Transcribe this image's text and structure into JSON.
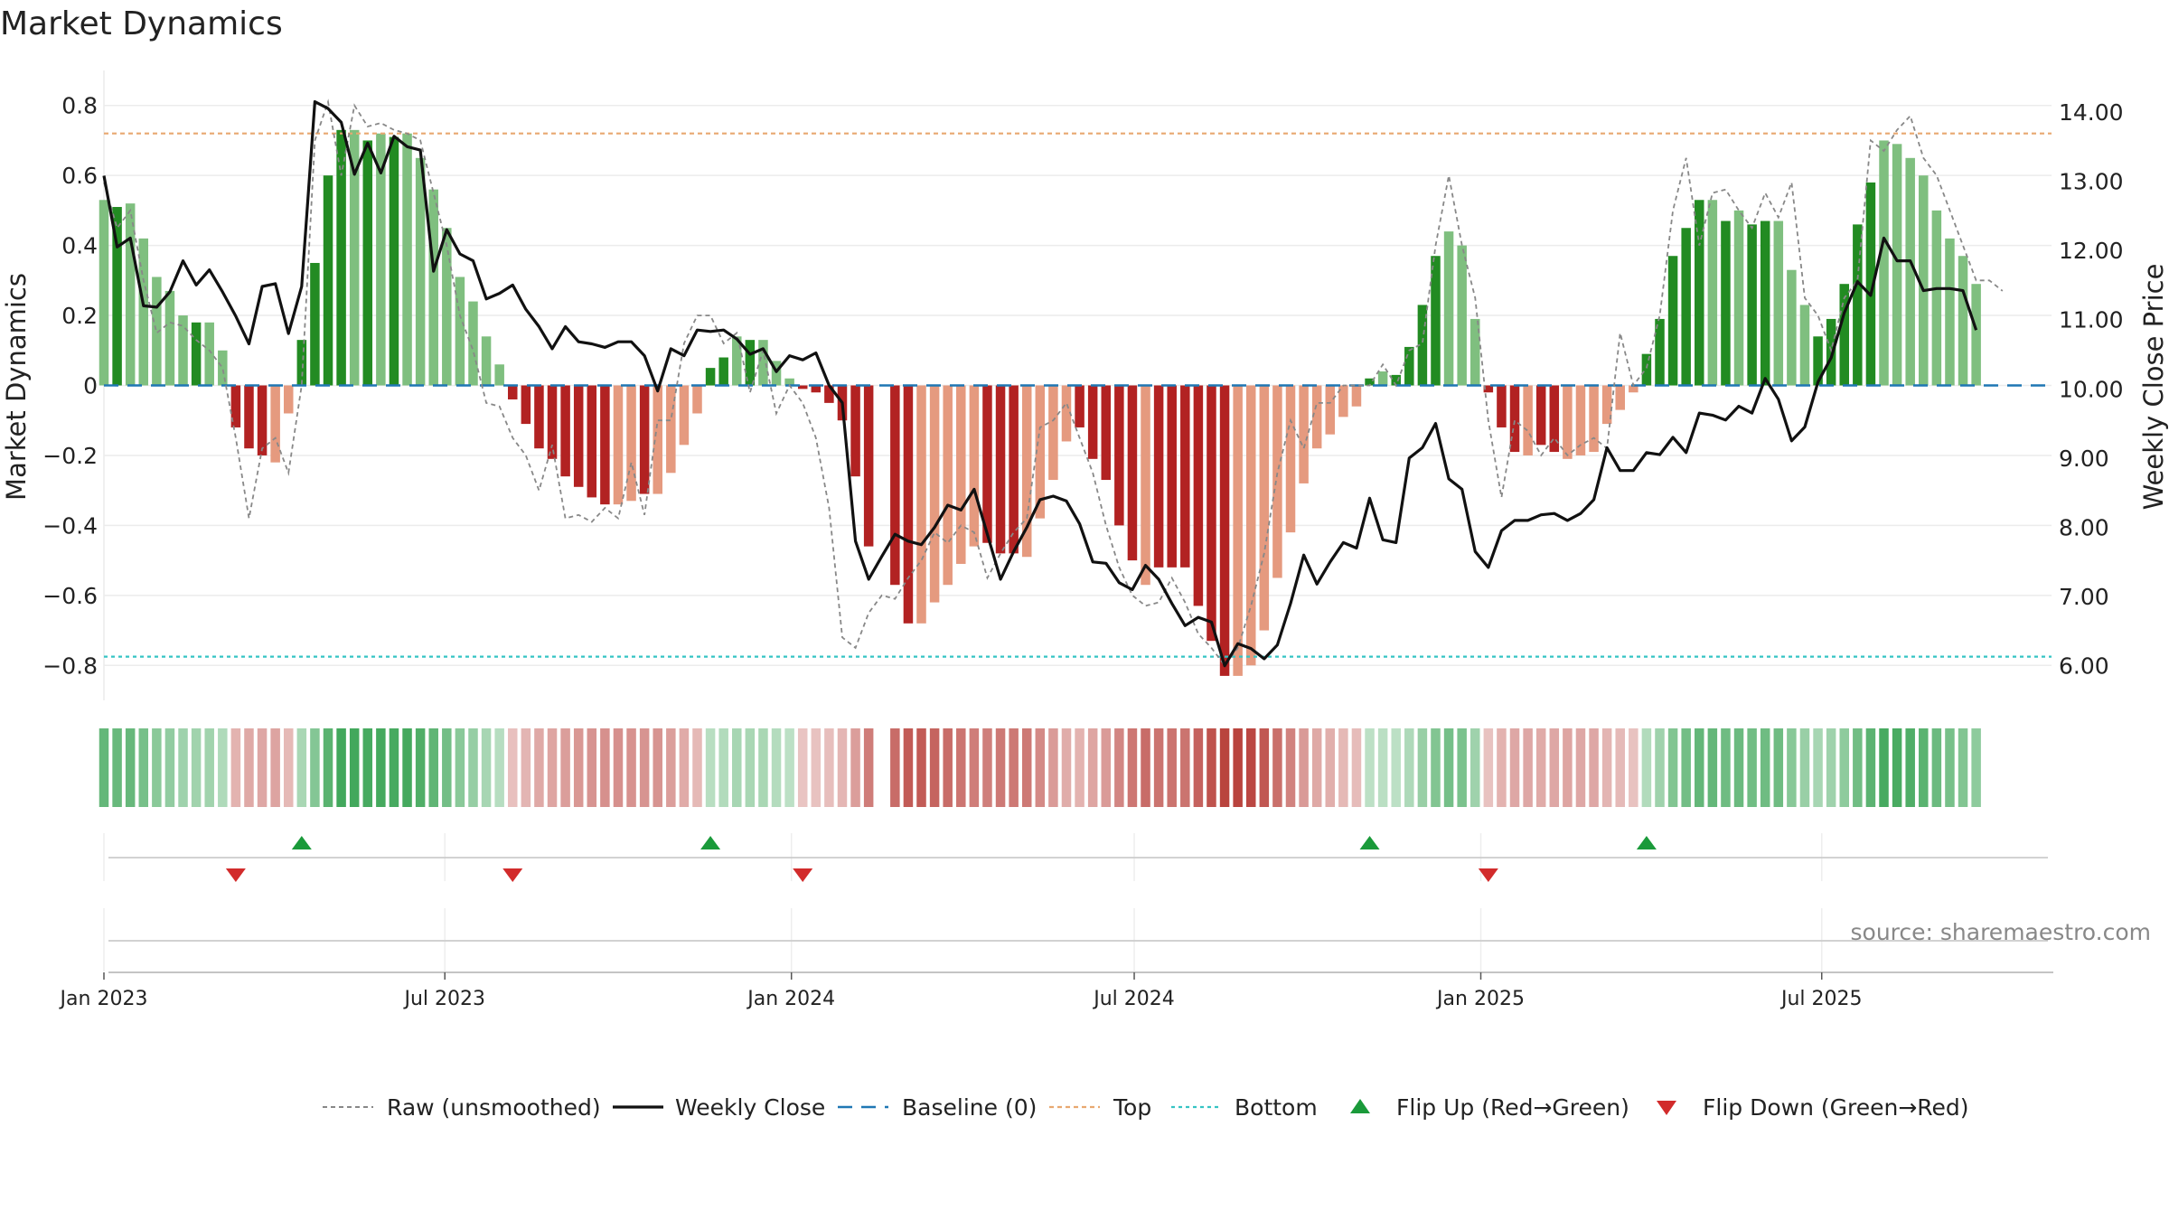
{
  "chart_data": {
    "type": "bar",
    "title": "Market Dynamics",
    "ylabel": "Market Dynamics",
    "y2label": "Weekly Close Price",
    "ylim": [
      -0.9,
      0.9
    ],
    "y2lim": [
      5.5,
      14.6
    ],
    "yticks": [
      {
        "v": 0.8,
        "label": "0.8"
      },
      {
        "v": 0.6,
        "label": "0.6"
      },
      {
        "v": 0.4,
        "label": "0.4"
      },
      {
        "v": 0.2,
        "label": "0.2"
      },
      {
        "v": 0,
        "label": "0"
      },
      {
        "v": -0.2,
        "label": "−0.2"
      },
      {
        "v": -0.4,
        "label": "−0.4"
      },
      {
        "v": -0.6,
        "label": "−0.6"
      },
      {
        "v": -0.8,
        "label": "−0.8"
      }
    ],
    "y2ticks": [
      {
        "v": 14,
        "label": "14.00"
      },
      {
        "v": 13,
        "label": "13.00"
      },
      {
        "v": 12,
        "label": "12.00"
      },
      {
        "v": 11,
        "label": "11.00"
      },
      {
        "v": 10,
        "label": "10.00"
      },
      {
        "v": 9,
        "label": "9.00"
      },
      {
        "v": 8,
        "label": "8.00"
      },
      {
        "v": 7,
        "label": "7.00"
      },
      {
        "v": 6,
        "label": "6.00"
      }
    ],
    "x_start": "2023-01-01",
    "x_end": "2025-10-31",
    "xticks": [
      {
        "date": "2023-01-01",
        "label": "Jan 2023"
      },
      {
        "date": "2023-07-01",
        "label": "Jul 2023"
      },
      {
        "date": "2024-01-01",
        "label": "Jan 2024"
      },
      {
        "date": "2024-07-01",
        "label": "Jul 2024"
      },
      {
        "date": "2025-01-01",
        "label": "Jan 2025"
      },
      {
        "date": "2025-07-01",
        "label": "Jul 2025"
      }
    ],
    "top": 0.72,
    "bottom": -0.775,
    "baseline": 0,
    "segments": [
      {
        "start": "2023-01-01",
        "values": [
          0.53,
          0.51,
          0.52,
          0.42,
          0.31,
          0.27,
          0.2,
          0.18,
          0.18,
          0.1
        ]
      },
      {
        "start": "2023-03-12",
        "values": [
          -0.12,
          -0.18,
          -0.2,
          -0.22,
          -0.08
        ]
      },
      {
        "start": "2023-04-16",
        "values": [
          0.13,
          0.35,
          0.6,
          0.73,
          0.73,
          0.7,
          0.72,
          0.71,
          0.72,
          0.65,
          0.56,
          0.45,
          0.31,
          0.24,
          0.14,
          0.06
        ]
      },
      {
        "start": "2023-08-06",
        "values": [
          -0.04,
          -0.11,
          -0.18,
          -0.21,
          -0.26,
          -0.29,
          -0.32,
          -0.34,
          -0.34,
          -0.33,
          -0.31,
          -0.31,
          -0.25,
          -0.17,
          -0.08
        ]
      },
      {
        "start": "2023-11-19",
        "values": [
          0.05,
          0.08,
          0.14,
          0.13,
          0.13,
          0.07,
          0.02
        ]
      },
      {
        "start": "2024-01-07",
        "values": [
          -0.01,
          -0.02,
          -0.05,
          -0.1,
          -0.26,
          -0.46
        ]
      },
      {
        "start": "2024-02-25",
        "values": [
          -0.57,
          -0.68,
          -0.68,
          -0.62,
          -0.57,
          -0.51,
          -0.46,
          -0.45,
          -0.48,
          -0.48,
          -0.49,
          -0.38,
          -0.27,
          -0.16,
          -0.12,
          -0.21,
          -0.27,
          -0.4,
          -0.5,
          -0.57,
          -0.52,
          -0.52,
          -0.52,
          -0.63,
          -0.73,
          -0.83,
          -0.83,
          -0.8,
          -0.7,
          -0.55,
          -0.42,
          -0.28,
          -0.18,
          -0.14,
          -0.09,
          -0.06
        ]
      },
      {
        "start": "2024-11-03",
        "values": [
          0.02,
          0.04,
          0.03,
          0.11,
          0.23,
          0.37,
          0.44,
          0.4,
          0.19
        ]
      },
      {
        "start": "2025-01-05",
        "values": [
          -0.02,
          -0.12,
          -0.19,
          -0.2,
          -0.17,
          -0.19,
          -0.21,
          -0.2,
          -0.19,
          -0.11,
          -0.07,
          -0.02
        ]
      },
      {
        "start": "2025-03-30",
        "values": [
          0.09,
          0.19,
          0.37,
          0.45,
          0.53,
          0.53,
          0.47,
          0.5,
          0.46,
          0.47,
          0.47,
          0.33,
          0.23,
          0.14,
          0.19,
          0.29,
          0.46,
          0.58,
          0.7,
          0.69,
          0.65,
          0.6,
          0.5,
          0.42,
          0.37,
          0.29
        ]
      }
    ],
    "price": {
      "start": "2023-01-01",
      "values": [
        13.08,
        12.05,
        12.18,
        11.2,
        11.18,
        11.4,
        11.85,
        11.5,
        11.72,
        11.4,
        11.05,
        10.65,
        11.48,
        11.52,
        10.8,
        11.48,
        14.15,
        14.05,
        13.85,
        13.1,
        13.55,
        13.12,
        13.65,
        13.5,
        13.45,
        11.7,
        12.3,
        11.95,
        11.85,
        11.3,
        11.38,
        11.5,
        11.15,
        10.9,
        10.58,
        10.9,
        10.68,
        10.65,
        10.6,
        10.68,
        10.68,
        10.48,
        9.97,
        10.58,
        10.48,
        10.85,
        10.83,
        10.85,
        10.72,
        10.5,
        10.58,
        10.25,
        10.48,
        10.42,
        10.52,
        10.05,
        9.8,
        7.8,
        7.25,
        7.58,
        7.9,
        7.8,
        7.75,
        8.0,
        8.32,
        8.25,
        8.55,
        7.9,
        7.25,
        7.65,
        8.0,
        8.4,
        8.45,
        8.38,
        8.05,
        7.5,
        7.48,
        7.2,
        7.1,
        7.45,
        7.25,
        6.9,
        6.58,
        6.7,
        6.63,
        6.0,
        6.32,
        6.25,
        6.1,
        6.3,
        6.9,
        7.6,
        7.18,
        7.5,
        7.78,
        7.7,
        8.42,
        7.82,
        7.78,
        9.0,
        9.15,
        9.5,
        8.7,
        8.55,
        7.65,
        7.42,
        7.95,
        8.1,
        8.1,
        8.18,
        8.2,
        8.1,
        8.2,
        8.4,
        9.15,
        8.82,
        8.82,
        9.08,
        9.05,
        9.3,
        9.08,
        9.65,
        9.62,
        9.55,
        9.75,
        9.65,
        10.15,
        9.85,
        9.25,
        9.45,
        10.1,
        10.45,
        11.1,
        11.55,
        11.35,
        12.18,
        11.85,
        11.85,
        11.42,
        11.45,
        11.45,
        11.42,
        10.85
      ]
    },
    "raw": {
      "start": "2023-01-01",
      "values": [
        0.58,
        0.45,
        0.5,
        0.3,
        0.15,
        0.18,
        0.17,
        0.13,
        0.1,
        0.05,
        -0.15,
        -0.38,
        -0.18,
        -0.15,
        -0.25,
        0.0,
        0.7,
        0.81,
        0.6,
        0.8,
        0.74,
        0.75,
        0.73,
        0.72,
        0.7,
        0.55,
        0.4,
        0.2,
        0.1,
        -0.05,
        -0.06,
        -0.15,
        -0.2,
        -0.3,
        -0.17,
        -0.38,
        -0.37,
        -0.39,
        -0.35,
        -0.38,
        -0.22,
        -0.37,
        -0.1,
        -0.1,
        0.12,
        0.2,
        0.2,
        0.12,
        0.15,
        -0.02,
        0.1,
        -0.08,
        0.0,
        -0.05,
        -0.15,
        -0.35,
        -0.72,
        -0.75,
        -0.65,
        -0.6,
        -0.61,
        -0.55,
        -0.5,
        -0.42,
        -0.45,
        -0.4,
        -0.42,
        -0.55,
        -0.48,
        -0.42,
        -0.38,
        -0.12,
        -0.1,
        -0.05,
        -0.15,
        -0.25,
        -0.4,
        -0.52,
        -0.6,
        -0.63,
        -0.62,
        -0.55,
        -0.62,
        -0.71,
        -0.75,
        -0.8,
        -0.75,
        -0.63,
        -0.48,
        -0.25,
        -0.1,
        -0.18,
        -0.05,
        -0.05,
        0.0,
        0.0,
        0.0,
        0.06,
        0.0,
        0.1,
        0.12,
        0.4,
        0.6,
        0.4,
        0.25,
        -0.1,
        -0.32,
        -0.1,
        -0.13,
        -0.2,
        -0.15,
        -0.2,
        -0.17,
        -0.15,
        -0.18,
        0.15,
        0.0,
        0.05,
        0.2,
        0.5,
        0.65,
        0.4,
        0.55,
        0.56,
        0.5,
        0.45,
        0.55,
        0.48,
        0.58,
        0.25,
        0.2,
        0.1,
        0.25,
        0.3,
        0.7,
        0.67,
        0.73,
        0.77,
        0.65,
        0.6,
        0.5,
        0.4,
        0.3,
        0.3,
        0.27
      ]
    },
    "flips_up": [
      "2023-04-16",
      "2023-11-19",
      "2024-11-03",
      "2025-03-30"
    ],
    "flips_down": [
      "2023-03-12",
      "2023-08-06",
      "2024-01-07",
      "2025-01-05"
    ],
    "colors": {
      "strong_green": "#228b22",
      "light_green": "#7fbf7f",
      "strong_red": "#b22222",
      "light_red": "#e59a7f",
      "price": "#111111",
      "raw": "#888888",
      "baseline": "#1f77b4",
      "top": "#e8a870",
      "bottom": "#35c4c4",
      "flip_up": "#1a9a3a",
      "flip_down": "#d22b2b"
    },
    "legend": [
      {
        "key": "raw",
        "label": "Raw (unsmoothed)"
      },
      {
        "key": "price",
        "label": "Weekly Close"
      },
      {
        "key": "baseline",
        "label": "Baseline (0)"
      },
      {
        "key": "top",
        "label": "Top"
      },
      {
        "key": "bottom",
        "label": "Bottom"
      },
      {
        "key": "flip_up",
        "label": "Flip Up (Red→Green)"
      },
      {
        "key": "flip_down",
        "label": "Flip Down (Green→Red)"
      }
    ],
    "source": "source: sharemaestro.com"
  }
}
